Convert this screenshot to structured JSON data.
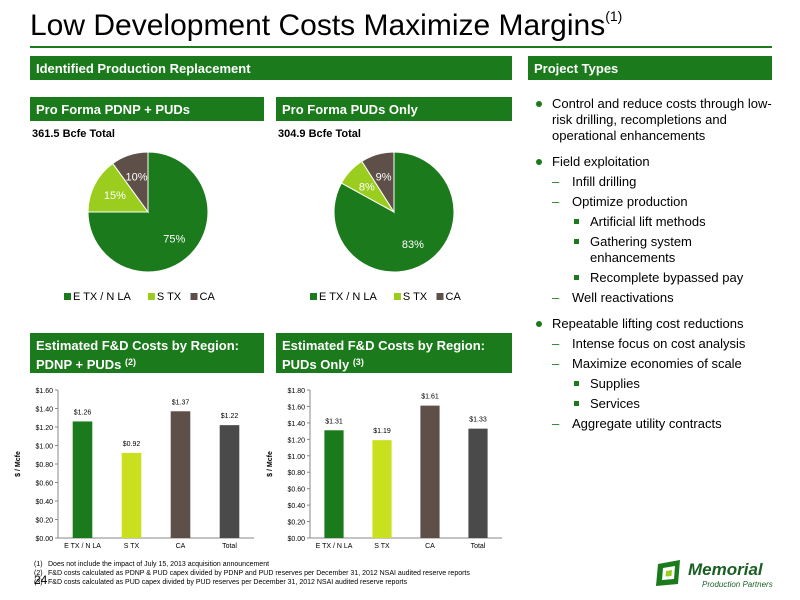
{
  "title": "Low Development Costs Maximize Margins",
  "title_note": "(1)",
  "headers": {
    "left": "Identified Production Replacement",
    "right": "Project Types",
    "pie1": "Pro Forma PDNP + PUDs",
    "pie2": "Pro Forma PUDs Only",
    "bar1_line1": "Estimated F&D Costs by Region:",
    "bar1_line2": "PDNP + PUDs",
    "bar1_note": "(2)",
    "bar2_line1": "Estimated F&D Costs by Region:",
    "bar2_line2": "PUDs Only",
    "bar2_note": "(3)"
  },
  "totals": {
    "pie1": "361.5 Bcfe Total",
    "pie2": "304.9 Bcfe Total"
  },
  "bullets": [
    {
      "level": 1,
      "text": "Control and reduce costs through low-risk drilling, recompletions and operational enhancements"
    },
    {
      "level": 1,
      "text": "Field exploitation"
    },
    {
      "level": 2,
      "text": "Infill drilling"
    },
    {
      "level": 2,
      "text": "Optimize production"
    },
    {
      "level": 3,
      "text": "Artificial lift methods"
    },
    {
      "level": 3,
      "text": "Gathering system enhancements"
    },
    {
      "level": 3,
      "text": "Recomplete bypassed pay"
    },
    {
      "level": 2,
      "text": "Well reactivations"
    },
    {
      "level": 1,
      "text": "Repeatable lifting cost reductions"
    },
    {
      "level": 2,
      "text": "Intense focus on cost analysis"
    },
    {
      "level": 2,
      "text": "Maximize economies of scale"
    },
    {
      "level": 3,
      "text": "Supplies"
    },
    {
      "level": 3,
      "text": "Services"
    },
    {
      "level": 2,
      "text": "Aggregate utility contracts"
    }
  ],
  "footnotes": [
    {
      "n": "(1)",
      "text": "Does not include the impact of July 15, 2013 acquisition announcement"
    },
    {
      "n": "(2)",
      "text": "F&D costs calculated as PDNP & PUD capex divided by PDNP and PUD reserves per December 31, 2012 NSAI audited reserve reports"
    },
    {
      "n": "(3)",
      "text": "F&D costs calculated as PUD capex divided by PUD reserves per December 31, 2012 NSAI audited reserve reports"
    }
  ],
  "page_number": "24",
  "logo": {
    "name": "Memorial",
    "sub": "Production Partners"
  },
  "colors": {
    "green": "#1b7a1b",
    "light_green": "#9acd1e",
    "brown": "#5e5048",
    "dark_gray": "#4a4a4a"
  },
  "chart_data": [
    {
      "type": "pie",
      "labels": [
        "E TX / N LA",
        "S TX",
        "CA"
      ],
      "values": [
        75,
        15,
        10
      ],
      "value_labels": [
        "75%",
        "15%",
        "10%"
      ],
      "colors": [
        "#1b7a1b",
        "#9acd1e",
        "#5e5048"
      ],
      "legend": "bottom"
    },
    {
      "type": "pie",
      "labels": [
        "E TX / N LA",
        "S TX",
        "CA"
      ],
      "values": [
        83,
        8,
        9
      ],
      "value_labels": [
        "83%",
        "8%",
        "9%"
      ],
      "colors": [
        "#1b7a1b",
        "#9acd1e",
        "#5e5048"
      ],
      "legend": "bottom"
    },
    {
      "type": "bar",
      "categories": [
        "E TX / N LA",
        "S TX",
        "CA",
        "Total"
      ],
      "values": [
        1.26,
        0.92,
        1.37,
        1.22
      ],
      "value_labels": [
        "$1.26",
        "$0.92",
        "$1.37",
        "$1.22"
      ],
      "colors": [
        "#1b7a1b",
        "#c9e01e",
        "#5e5048",
        "#4a4a4a"
      ],
      "ylabel": "$ / Mcfe",
      "ylim": [
        0,
        1.6
      ],
      "yticks": [
        "$0.00",
        "$0.20",
        "$0.40",
        "$0.60",
        "$0.80",
        "$1.00",
        "$1.20",
        "$1.40",
        "$1.60"
      ]
    },
    {
      "type": "bar",
      "categories": [
        "E TX / N LA",
        "S TX",
        "CA",
        "Total"
      ],
      "values": [
        1.31,
        1.19,
        1.61,
        1.33
      ],
      "value_labels": [
        "$1.31",
        "$1.19",
        "$1.61",
        "$1.33"
      ],
      "colors": [
        "#1b7a1b",
        "#c9e01e",
        "#5e5048",
        "#4a4a4a"
      ],
      "ylabel": "$ / Mcfe",
      "ylim": [
        0,
        1.8
      ],
      "yticks": [
        "$0.00",
        "$0.20",
        "$0.40",
        "$0.60",
        "$0.80",
        "$1.00",
        "$1.20",
        "$1.40",
        "$1.60",
        "$1.80"
      ]
    }
  ]
}
